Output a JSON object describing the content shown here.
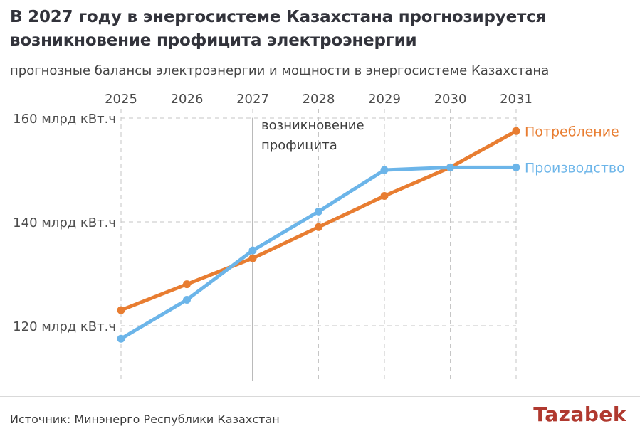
{
  "header": {
    "title": "В 2027 году в энергосистеме Казахстана прогнозируется возникновение профицита электроэнергии",
    "subtitle": "прогнозные балансы электроэнергии и мощности в энергосистеме Казахстана"
  },
  "chart_data": {
    "type": "line",
    "x": [
      2025,
      2026,
      2027,
      2028,
      2029,
      2030,
      2031
    ],
    "series": [
      {
        "name": "Потребление",
        "color": "#e87d31",
        "values": [
          123,
          128,
          133,
          139,
          145,
          150.5,
          157.5
        ]
      },
      {
        "name": "Производство",
        "color": "#6cb5e9",
        "values": [
          117.5,
          125,
          134.5,
          142,
          150,
          150.5,
          150.5
        ]
      }
    ],
    "y_ticks": [
      {
        "value": 160,
        "label": "160 млрд кВт.ч"
      },
      {
        "value": 140,
        "label": "140 млрд кВт.ч"
      },
      {
        "value": 120,
        "label": "120 млрд кВт.ч"
      }
    ],
    "unit": "млрд кВт.ч",
    "ylim": [
      110,
      163
    ],
    "grid": "dashed",
    "legend_position": "end-of-line-labels-right",
    "annotation": {
      "x": 2027,
      "lines": [
        "возникновение",
        "профицита"
      ]
    },
    "annotation_line_style": "solid-vertical"
  },
  "footer": {
    "source": "Источник: Минэнерго Республики Казахстан",
    "logo": "Tazabek"
  },
  "colors": {
    "grid": "#c6c6c6",
    "annotation_line": "#757575",
    "tick_text": "#4c4c4c",
    "logo": "#b0392f"
  }
}
